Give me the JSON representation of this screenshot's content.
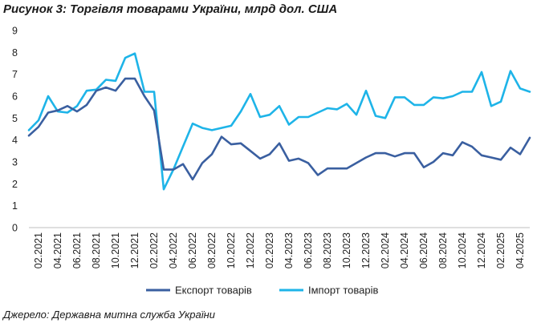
{
  "title": "Рисунок 3: Торгівля товарами України, млрд дол. США",
  "source": "Джерело: Державна митна служба України",
  "colors": {
    "export": "#3A5FA0",
    "import": "#1EB4E8",
    "axis": "#BFBFBF"
  },
  "chart_data": {
    "type": "line",
    "title": "Рисунок 3: Торгівля товарами України, млрд дол. США",
    "xlabel": "",
    "ylabel": "",
    "ylim": [
      0,
      9
    ],
    "yticks": [
      0,
      1,
      2,
      3,
      4,
      5,
      6,
      7,
      8,
      9
    ],
    "grid": false,
    "legend": "bottom",
    "x": [
      "01.2021",
      "02.2021",
      "03.2021",
      "04.2021",
      "05.2021",
      "06.2021",
      "07.2021",
      "08.2021",
      "09.2021",
      "10.2021",
      "11.2021",
      "12.2021",
      "01.2022",
      "02.2022",
      "03.2022",
      "04.2022",
      "05.2022",
      "06.2022",
      "07.2022",
      "08.2022",
      "09.2022",
      "10.2022",
      "11.2022",
      "12.2022",
      "01.2023",
      "02.2023",
      "03.2023",
      "04.2023",
      "05.2023",
      "06.2023",
      "07.2023",
      "08.2023",
      "09.2023",
      "10.2023",
      "11.2023",
      "12.2023",
      "01.2024",
      "02.2024",
      "03.2024",
      "04.2024",
      "05.2024",
      "06.2024",
      "07.2024",
      "08.2024",
      "09.2024",
      "10.2024",
      "11.2024",
      "12.2024",
      "01.2025",
      "02.2025",
      "03.2025",
      "04.2025",
      "05.2025"
    ],
    "x_tick_labels": [
      "02.2021",
      "04.2021",
      "06.2021",
      "08.2021",
      "10.2021",
      "12.2021",
      "02.2022",
      "04.2022",
      "06.2022",
      "08.2022",
      "10.2022",
      "12.2022",
      "02.2023",
      "04.2023",
      "06.2023",
      "08.2023",
      "10.2023",
      "12.2023",
      "02.2024",
      "04.2024",
      "06.2024",
      "08.2024",
      "10.2024",
      "12.2024",
      "02.2025",
      "04.2025"
    ],
    "series": [
      {
        "name": "Експорт товарів",
        "values": [
          4.2,
          4.6,
          5.25,
          5.35,
          5.55,
          5.3,
          5.6,
          6.25,
          6.4,
          6.25,
          6.8,
          6.8,
          6.0,
          5.35,
          2.65,
          2.65,
          2.9,
          2.2,
          2.95,
          3.35,
          4.15,
          3.8,
          3.85,
          3.5,
          3.15,
          3.35,
          3.85,
          3.05,
          3.15,
          2.95,
          2.4,
          2.7,
          2.7,
          2.7,
          2.95,
          3.2,
          3.4,
          3.4,
          3.25,
          3.4,
          3.4,
          2.75,
          3.0,
          3.4,
          3.3,
          3.9,
          3.7,
          3.3,
          3.2,
          3.1,
          3.65,
          3.35,
          4.1
        ]
      },
      {
        "name": "Імпорт товарів",
        "values": [
          4.45,
          4.9,
          6.0,
          5.3,
          5.25,
          5.55,
          6.25,
          6.3,
          6.75,
          6.7,
          7.75,
          7.95,
          6.2,
          6.2,
          1.75,
          2.65,
          3.7,
          4.75,
          4.55,
          4.45,
          4.55,
          4.65,
          5.3,
          6.1,
          5.05,
          5.15,
          5.55,
          4.7,
          5.05,
          5.05,
          5.25,
          5.45,
          5.4,
          5.65,
          5.15,
          6.25,
          5.1,
          5.0,
          5.95,
          5.95,
          5.6,
          5.6,
          5.95,
          5.9,
          6.0,
          6.2,
          6.2,
          7.1,
          5.55,
          5.75,
          7.15,
          6.35,
          6.2
        ]
      }
    ]
  }
}
